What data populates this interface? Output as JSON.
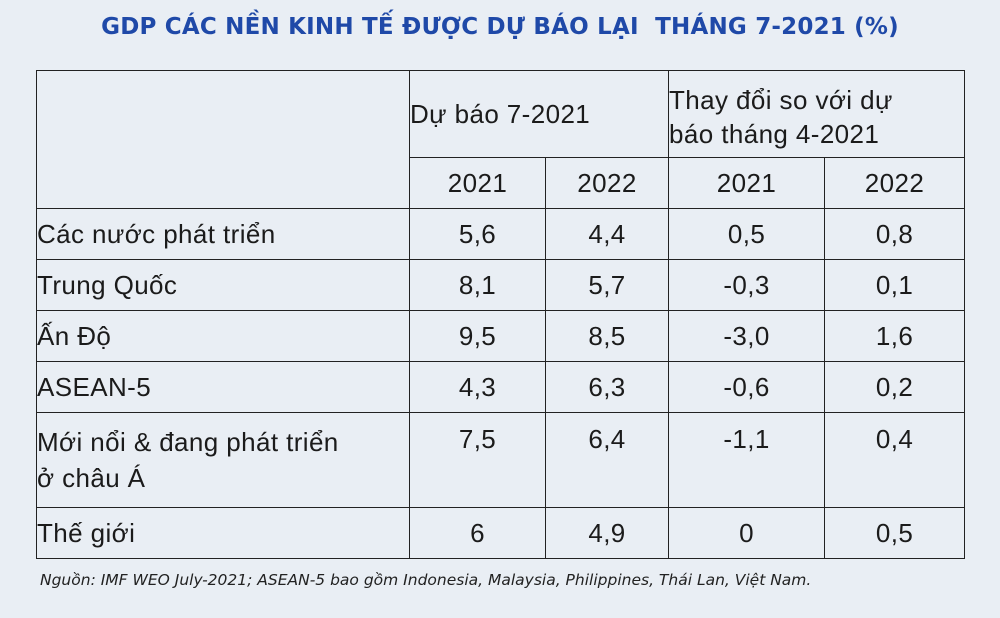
{
  "title": "GDP CÁC NỀN KINH TẾ ĐƯỢC DỰ BÁO LẠI  THÁNG 7-2021 (%)",
  "headers": {
    "group1": "Dự báo 7-2021",
    "group2_line1": "Thay đổi so với dự",
    "group2_line2": "báo tháng 4-2021",
    "years": [
      "2021",
      "2022",
      "2021",
      "2022"
    ]
  },
  "source": "Nguồn: IMF WEO July-2021; ASEAN-5 bao gồm Indonesia, Malaysia, Philippines, Thái Lan, Việt Nam.",
  "chart_data": {
    "type": "table",
    "title": "GDP CÁC NỀN KINH TẾ ĐƯỢC DỰ BÁO LẠI  THÁNG 7-2021 (%)",
    "column_groups": [
      "Dự báo 7-2021",
      "Thay đổi so với dự báo tháng 4-2021"
    ],
    "columns": [
      "2021",
      "2022",
      "2021",
      "2022"
    ],
    "rows": [
      {
        "label_lines": [
          "Các nước phát triển"
        ],
        "values": [
          "5,6",
          "4,4",
          "0,5",
          "0,8"
        ]
      },
      {
        "label_lines": [
          "Trung Quốc"
        ],
        "values": [
          "8,1",
          "5,7",
          "-0,3",
          "0,1"
        ]
      },
      {
        "label_lines": [
          "Ấn Độ"
        ],
        "values": [
          "9,5",
          "8,5",
          "-3,0",
          "1,6"
        ]
      },
      {
        "label_lines": [
          "ASEAN-5"
        ],
        "values": [
          "4,3",
          "6,3",
          "-0,6",
          "0,2"
        ]
      },
      {
        "label_lines": [
          "Mới nổi & đang phát triển",
          "ở châu Á"
        ],
        "values": [
          "7,5",
          "6,4",
          "-1,1",
          "0,4"
        ]
      },
      {
        "label_lines": [
          "Thế giới"
        ],
        "values": [
          "6",
          "4,9",
          "0",
          "0,5"
        ]
      }
    ]
  }
}
